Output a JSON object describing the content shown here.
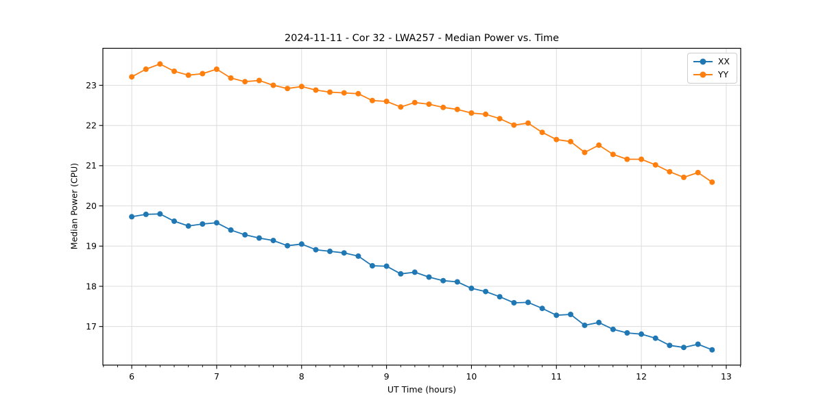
{
  "figure": {
    "background": "#ffffff"
  },
  "chart_data": {
    "type": "line",
    "title": "2024-11-11 - Cor 32 - LWA257 - Median Power vs. Time",
    "xlabel": "UT Time (hours)",
    "ylabel": "Median Power (CPU)",
    "xlim": [
      5.66,
      13.17
    ],
    "ylim": [
      16.04,
      23.92
    ],
    "x_ticks": [
      6,
      7,
      8,
      9,
      10,
      11,
      12,
      13
    ],
    "y_ticks": [
      17,
      18,
      19,
      20,
      21,
      22,
      23
    ],
    "minor_x_tick_interval_hours": 0.1667,
    "grid": true,
    "grid_color": "#dcdcdc",
    "legend_position": "upper right",
    "marker": "circle",
    "x": [
      6.0,
      6.167,
      6.333,
      6.5,
      6.667,
      6.833,
      7.0,
      7.167,
      7.333,
      7.5,
      7.667,
      7.833,
      8.0,
      8.167,
      8.333,
      8.5,
      8.667,
      8.833,
      9.0,
      9.167,
      9.333,
      9.5,
      9.667,
      9.833,
      10.0,
      10.167,
      10.333,
      10.5,
      10.667,
      10.833,
      11.0,
      11.167,
      11.333,
      11.5,
      11.667,
      11.833,
      12.0,
      12.167,
      12.333,
      12.5,
      12.667,
      12.833
    ],
    "series": [
      {
        "name": "XX",
        "color": "#1f77b4",
        "values": [
          19.73,
          19.79,
          19.8,
          19.62,
          19.5,
          19.55,
          19.58,
          19.4,
          19.28,
          19.2,
          19.14,
          19.01,
          19.05,
          18.91,
          18.87,
          18.83,
          18.75,
          18.51,
          18.5,
          18.31,
          18.35,
          18.23,
          18.14,
          18.11,
          17.95,
          17.87,
          17.74,
          17.59,
          17.6,
          17.45,
          17.28,
          17.3,
          17.03,
          17.1,
          16.93,
          16.84,
          16.81,
          16.71,
          16.53,
          16.48,
          16.56,
          16.42
        ]
      },
      {
        "name": "YY",
        "color": "#ff7f0e",
        "values": [
          23.21,
          23.4,
          23.53,
          23.35,
          23.25,
          23.29,
          23.4,
          23.18,
          23.09,
          23.12,
          23.0,
          22.92,
          22.97,
          22.88,
          22.83,
          22.81,
          22.79,
          22.62,
          22.6,
          22.46,
          22.57,
          22.53,
          22.45,
          22.4,
          22.31,
          22.28,
          22.17,
          22.01,
          22.06,
          21.83,
          21.65,
          21.6,
          21.33,
          21.51,
          21.28,
          21.16,
          21.16,
          21.02,
          20.85,
          20.71,
          20.83,
          20.59
        ]
      }
    ]
  }
}
